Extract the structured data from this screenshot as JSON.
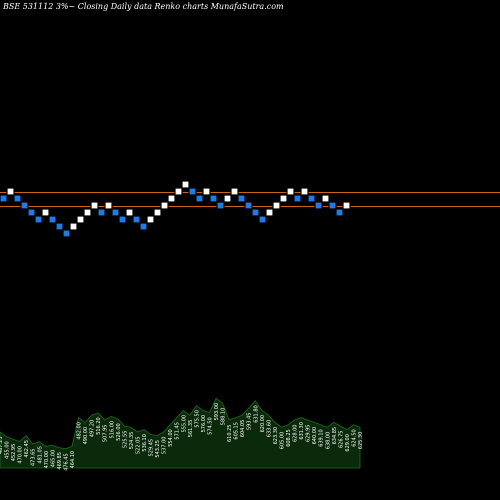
{
  "title": "BSE 531112  3%~  Closing Daily data  Renko  charts MunafaSutra.com",
  "colors": {
    "background": "#000000",
    "up_brick": "#ffffff",
    "down_brick": "#1e7be8",
    "brick_border": "#000000",
    "ref_line_upper": "#c86414",
    "ref_line_lower": "#c86414",
    "volume_fill": "#0b2a0b",
    "volume_stroke": "#1d6b1d",
    "volume_label": "#ffffff"
  },
  "chart_data": {
    "type": "renko",
    "brick_level_unit": "brick",
    "reference_lines_levels": [
      5,
      3
    ],
    "bricks": [
      {
        "dir": "down",
        "level": 4
      },
      {
        "dir": "up",
        "level": 5
      },
      {
        "dir": "down",
        "level": 4
      },
      {
        "dir": "down",
        "level": 3
      },
      {
        "dir": "down",
        "level": 2
      },
      {
        "dir": "down",
        "level": 1
      },
      {
        "dir": "up",
        "level": 2
      },
      {
        "dir": "down",
        "level": 1
      },
      {
        "dir": "down",
        "level": 0
      },
      {
        "dir": "down",
        "level": -1
      },
      {
        "dir": "up",
        "level": 0
      },
      {
        "dir": "up",
        "level": 1
      },
      {
        "dir": "up",
        "level": 2
      },
      {
        "dir": "up",
        "level": 3
      },
      {
        "dir": "down",
        "level": 2
      },
      {
        "dir": "up",
        "level": 3
      },
      {
        "dir": "down",
        "level": 2
      },
      {
        "dir": "down",
        "level": 1
      },
      {
        "dir": "up",
        "level": 2
      },
      {
        "dir": "down",
        "level": 1
      },
      {
        "dir": "down",
        "level": 0
      },
      {
        "dir": "up",
        "level": 1
      },
      {
        "dir": "up",
        "level": 2
      },
      {
        "dir": "up",
        "level": 3
      },
      {
        "dir": "up",
        "level": 4
      },
      {
        "dir": "up",
        "level": 5
      },
      {
        "dir": "up",
        "level": 6
      },
      {
        "dir": "down",
        "level": 5
      },
      {
        "dir": "down",
        "level": 4
      },
      {
        "dir": "up",
        "level": 5
      },
      {
        "dir": "down",
        "level": 4
      },
      {
        "dir": "down",
        "level": 3
      },
      {
        "dir": "up",
        "level": 4
      },
      {
        "dir": "up",
        "level": 5
      },
      {
        "dir": "down",
        "level": 4
      },
      {
        "dir": "down",
        "level": 3
      },
      {
        "dir": "down",
        "level": 2
      },
      {
        "dir": "down",
        "level": 1
      },
      {
        "dir": "up",
        "level": 2
      },
      {
        "dir": "up",
        "level": 3
      },
      {
        "dir": "up",
        "level": 4
      },
      {
        "dir": "up",
        "level": 5
      },
      {
        "dir": "down",
        "level": 4
      },
      {
        "dir": "up",
        "level": 5
      },
      {
        "dir": "down",
        "level": 4
      },
      {
        "dir": "down",
        "level": 3
      },
      {
        "dir": "up",
        "level": 4
      },
      {
        "dir": "down",
        "level": 3
      },
      {
        "dir": "down",
        "level": 2
      },
      {
        "dir": "up",
        "level": 3
      }
    ],
    "volume": [
      {
        "label": "467.25",
        "value": 0.3
      },
      {
        "label": "455.00",
        "value": 0.26
      },
      {
        "label": "452.95",
        "value": 0.24
      },
      {
        "label": "470.00",
        "value": 0.22
      },
      {
        "label": "462.45",
        "value": 0.27
      },
      {
        "label": "473.65",
        "value": 0.2
      },
      {
        "label": "481.05",
        "value": 0.22
      },
      {
        "label": "470.00",
        "value": 0.18
      },
      {
        "label": "465.00",
        "value": 0.19
      },
      {
        "label": "469.85",
        "value": 0.17
      },
      {
        "label": "476.45",
        "value": 0.16
      },
      {
        "label": "464.10",
        "value": 0.18
      },
      {
        "label": "482.00",
        "value": 0.42
      },
      {
        "label": "490.00",
        "value": 0.38
      },
      {
        "label": "497.20",
        "value": 0.44
      },
      {
        "label": "516.20",
        "value": 0.46
      },
      {
        "label": "507.95",
        "value": 0.4
      },
      {
        "label": "516.00",
        "value": 0.43
      },
      {
        "label": "526.00",
        "value": 0.41
      },
      {
        "label": "525.55",
        "value": 0.35
      },
      {
        "label": "524.35",
        "value": 0.34
      },
      {
        "label": "522.05",
        "value": 0.3
      },
      {
        "label": "536.10",
        "value": 0.32
      },
      {
        "label": "529.45",
        "value": 0.28
      },
      {
        "label": "543.25",
        "value": 0.27
      },
      {
        "label": "537.00",
        "value": 0.3
      },
      {
        "label": "554.00",
        "value": 0.36
      },
      {
        "label": "571.45",
        "value": 0.42
      },
      {
        "label": "555.00",
        "value": 0.48
      },
      {
        "label": "561.35",
        "value": 0.44
      },
      {
        "label": "575.50",
        "value": 0.52
      },
      {
        "label": "576.00",
        "value": 0.48
      },
      {
        "label": "574.50",
        "value": 0.46
      },
      {
        "label": "593.00",
        "value": 0.58
      },
      {
        "label": "588.10",
        "value": 0.54
      },
      {
        "label": "610.25",
        "value": 0.4
      },
      {
        "label": "605.15",
        "value": 0.42
      },
      {
        "label": "604.05",
        "value": 0.44
      },
      {
        "label": "593.45",
        "value": 0.5
      },
      {
        "label": "631.80",
        "value": 0.56
      },
      {
        "label": "620.00",
        "value": 0.48
      },
      {
        "label": "633.60",
        "value": 0.44
      },
      {
        "label": "623.30",
        "value": 0.38
      },
      {
        "label": "605.00",
        "value": 0.34
      },
      {
        "label": "608.25",
        "value": 0.36
      },
      {
        "label": "628.00",
        "value": 0.4
      },
      {
        "label": "631.30",
        "value": 0.42
      },
      {
        "label": "629.95",
        "value": 0.4
      },
      {
        "label": "640.00",
        "value": 0.38
      },
      {
        "label": "639.10",
        "value": 0.36
      },
      {
        "label": "638.00",
        "value": 0.34
      },
      {
        "label": "634.85",
        "value": 0.38
      },
      {
        "label": "626.75",
        "value": 0.35
      },
      {
        "label": "629.00",
        "value": 0.32
      },
      {
        "label": "624.50",
        "value": 0.36
      },
      {
        "label": "625.30",
        "value": 0.34
      }
    ]
  }
}
